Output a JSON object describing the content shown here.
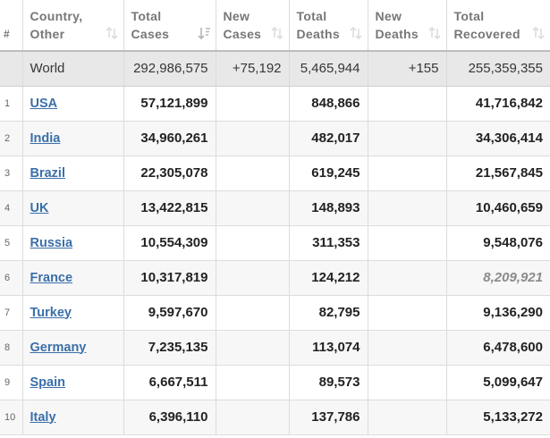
{
  "table": {
    "headers": [
      {
        "label": "#",
        "sort_icon": "none"
      },
      {
        "label": "Country,\nOther",
        "sort_icon": "sort-both-icon"
      },
      {
        "label": "Total\nCases",
        "sort_icon": "sort-desc-icon"
      },
      {
        "label": "New\nCases",
        "sort_icon": "sort-both-icon"
      },
      {
        "label": "Total\nDeaths",
        "sort_icon": "sort-both-icon"
      },
      {
        "label": "New\nDeaths",
        "sort_icon": "sort-both-icon"
      },
      {
        "label": "Total\nRecovered",
        "sort_icon": "sort-both-icon"
      }
    ],
    "world": {
      "rank": "",
      "name": "World",
      "total_cases": "292,986,575",
      "new_cases": "+75,192",
      "total_deaths": "5,465,944",
      "new_deaths": "+155",
      "total_recovered": "255,359,355"
    },
    "rows": [
      {
        "rank": "1",
        "name": "USA",
        "total_cases": "57,121,899",
        "new_cases": "",
        "total_deaths": "848,866",
        "new_deaths": "",
        "total_recovered": "41,716,842",
        "recovered_italic": false
      },
      {
        "rank": "2",
        "name": "India",
        "total_cases": "34,960,261",
        "new_cases": "",
        "total_deaths": "482,017",
        "new_deaths": "",
        "total_recovered": "34,306,414",
        "recovered_italic": false
      },
      {
        "rank": "3",
        "name": "Brazil",
        "total_cases": "22,305,078",
        "new_cases": "",
        "total_deaths": "619,245",
        "new_deaths": "",
        "total_recovered": "21,567,845",
        "recovered_italic": false
      },
      {
        "rank": "4",
        "name": "UK",
        "total_cases": "13,422,815",
        "new_cases": "",
        "total_deaths": "148,893",
        "new_deaths": "",
        "total_recovered": "10,460,659",
        "recovered_italic": false
      },
      {
        "rank": "5",
        "name": "Russia",
        "total_cases": "10,554,309",
        "new_cases": "",
        "total_deaths": "311,353",
        "new_deaths": "",
        "total_recovered": "9,548,076",
        "recovered_italic": false
      },
      {
        "rank": "6",
        "name": "France",
        "total_cases": "10,317,819",
        "new_cases": "",
        "total_deaths": "124,212",
        "new_deaths": "",
        "total_recovered": "8,209,921",
        "recovered_italic": true
      },
      {
        "rank": "7",
        "name": "Turkey",
        "total_cases": "9,597,670",
        "new_cases": "",
        "total_deaths": "82,795",
        "new_deaths": "",
        "total_recovered": "9,136,290",
        "recovered_italic": false
      },
      {
        "rank": "8",
        "name": "Germany",
        "total_cases": "7,235,135",
        "new_cases": "",
        "total_deaths": "113,074",
        "new_deaths": "",
        "total_recovered": "6,478,600",
        "recovered_italic": false
      },
      {
        "rank": "9",
        "name": "Spain",
        "total_cases": "6,667,511",
        "new_cases": "",
        "total_deaths": "89,573",
        "new_deaths": "",
        "total_recovered": "5,099,647",
        "recovered_italic": false
      },
      {
        "rank": "10",
        "name": "Italy",
        "total_cases": "6,396,110",
        "new_cases": "",
        "total_deaths": "137,786",
        "new_deaths": "",
        "total_recovered": "5,133,272",
        "recovered_italic": false
      }
    ]
  },
  "colors": {
    "link": "#3b6fa8",
    "world_row_bg": "#e8e8e8",
    "stripe_bg": "#f7f7f7",
    "header_text": "#777777",
    "italic_value": "#8a8a8a"
  }
}
